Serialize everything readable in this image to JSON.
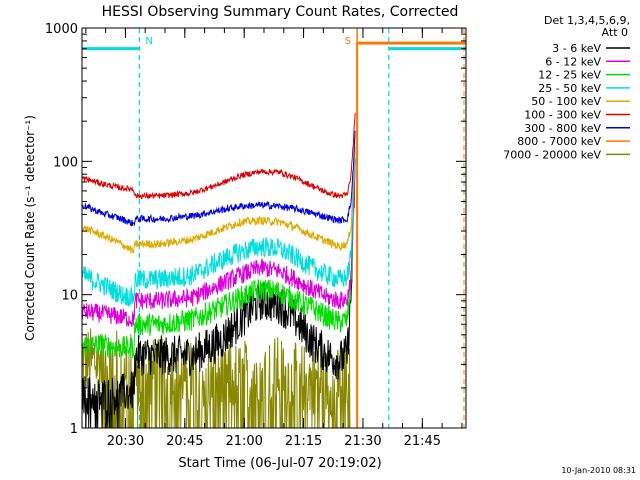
{
  "chart_data": {
    "type": "line",
    "title": "HESSI Observing Summary Count Rates, Corrected",
    "xlabel": "Start Time (06-Jul-07 20:19:02)",
    "ylabel": "Corrected Count Rate (s⁻¹ detector⁻¹)",
    "yscale": "log",
    "ylim": [
      1,
      1000
    ],
    "xlim_minutes_after_start": [
      0,
      97
    ],
    "x_ticks": [
      {
        "t": 10.97,
        "label": "20:30"
      },
      {
        "t": 25.97,
        "label": "20:45"
      },
      {
        "t": 40.97,
        "label": "21:00"
      },
      {
        "t": 55.97,
        "label": "21:15"
      },
      {
        "t": 70.97,
        "label": "21:30"
      },
      {
        "t": 85.97,
        "label": "21:45"
      }
    ],
    "y_ticks": [
      {
        "v": 1,
        "label": "1"
      },
      {
        "v": 10,
        "label": "10"
      },
      {
        "v": 100,
        "label": "100"
      },
      {
        "v": 1000,
        "label": "1000"
      }
    ],
    "legend": {
      "position": "top-right",
      "header": [
        "Det 1,3,4,5,6,9,",
        "Att 0"
      ]
    },
    "series": [
      {
        "name": "3 - 6 keV",
        "color": "#000000",
        "x": [
          0,
          5,
          10,
          13,
          13.5,
          20,
          28,
          35,
          40,
          45,
          50,
          54,
          58,
          62,
          65,
          67,
          68,
          68.6,
          69
        ],
        "y": [
          1.8,
          1.7,
          1.8,
          1.9,
          3.5,
          3.5,
          3.5,
          4.5,
          6.5,
          9.0,
          8.5,
          6.5,
          4.5,
          3.5,
          3.2,
          3.6,
          10,
          40,
          90
        ]
      },
      {
        "name": "6 - 12 keV",
        "color": "#dd00dd",
        "x": [
          0,
          5,
          10,
          13,
          13.5,
          20,
          28,
          35,
          40,
          45,
          50,
          54,
          58,
          62,
          65,
          67,
          68,
          68.6,
          69
        ],
        "y": [
          7.5,
          7.2,
          6.8,
          6.5,
          9.0,
          9.0,
          9.5,
          12,
          14,
          16,
          15,
          13,
          11,
          9.5,
          9.0,
          9.2,
          14,
          45,
          100
        ]
      },
      {
        "name": "12 - 25 keV",
        "color": "#00dd00",
        "x": [
          0,
          5,
          10,
          13,
          13.5,
          20,
          28,
          35,
          40,
          45,
          50,
          54,
          58,
          62,
          65,
          67,
          68,
          68.6,
          69
        ],
        "y": [
          4.2,
          4.2,
          4.0,
          4.0,
          6.0,
          6.0,
          6.5,
          8.0,
          9.5,
          11,
          10.5,
          9.0,
          8.0,
          6.8,
          6.2,
          6.5,
          12,
          45,
          100
        ]
      },
      {
        "name": "25 - 50 keV",
        "color": "#00dddd",
        "x": [
          0,
          5,
          10,
          13,
          13.5,
          20,
          28,
          35,
          40,
          45,
          50,
          54,
          58,
          62,
          65,
          67,
          68,
          68.6,
          69
        ],
        "y": [
          14,
          12,
          10,
          9.5,
          13,
          13,
          14,
          18,
          21,
          23,
          22,
          19,
          16,
          14,
          13,
          13.5,
          20,
          60,
          120
        ]
      },
      {
        "name": "50 - 100 keV",
        "color": "#ddaa00",
        "x": [
          0,
          5,
          10,
          13,
          13.5,
          20,
          28,
          35,
          40,
          45,
          50,
          54,
          58,
          62,
          65,
          67,
          68,
          68.6,
          69
        ],
        "y": [
          32,
          28,
          24,
          21,
          24,
          24,
          26,
          31,
          35,
          36,
          35,
          32,
          28,
          25,
          23,
          24,
          33,
          80,
          150
        ]
      },
      {
        "name": "100 - 300 keV",
        "color": "#dd0000",
        "x": [
          0,
          5,
          10,
          13,
          13.5,
          20,
          28,
          35,
          40,
          45,
          50,
          54,
          58,
          62,
          65,
          67,
          68,
          68.6,
          69
        ],
        "y": [
          75,
          68,
          63,
          62,
          55,
          55,
          58,
          68,
          78,
          84,
          83,
          75,
          66,
          58,
          55,
          56,
          80,
          150,
          220
        ]
      },
      {
        "name": "300 - 800 keV",
        "color": "#0000dd",
        "x": [
          0,
          5,
          10,
          13,
          13.5,
          20,
          28,
          35,
          40,
          45,
          50,
          54,
          58,
          62,
          65,
          67,
          68,
          68.6,
          69
        ],
        "y": [
          47,
          41,
          37,
          34,
          37,
          37,
          39,
          43,
          46,
          47,
          46,
          44,
          41,
          38,
          36,
          37,
          50,
          100,
          170
        ]
      },
      {
        "name": "800 - 7000 keV",
        "color": "#ff7700",
        "x": [
          69.5,
          69.5,
          97
        ],
        "y": [
          1,
          770,
          770
        ]
      },
      {
        "name": "7000 - 20000 keV",
        "color": "#888800",
        "x": [
          0,
          13,
          13.5,
          20,
          28,
          35,
          40,
          45,
          50,
          54,
          58,
          62,
          65,
          67,
          68
        ],
        "y": [
          3.2,
          3.0,
          2.6,
          2.6,
          2.5,
          2.3,
          2.5,
          2.8,
          2.7,
          2.4,
          2.3,
          2.2,
          2.2,
          2.3,
          2.5
        ]
      }
    ],
    "markers": [
      {
        "label": "N",
        "color": "#00dddd",
        "x": 14.5,
        "level": 700,
        "x_start": 0
      },
      {
        "label": "S",
        "color": "#ff7700",
        "x": 69.5,
        "level": 770,
        "x_start": 69.5
      },
      {
        "label": "",
        "color": "#00dddd",
        "x": 77.5,
        "level": 700,
        "x_start": 77.5
      }
    ]
  },
  "footer": {
    "timestamp": "10-Jan-2010 08:31"
  }
}
